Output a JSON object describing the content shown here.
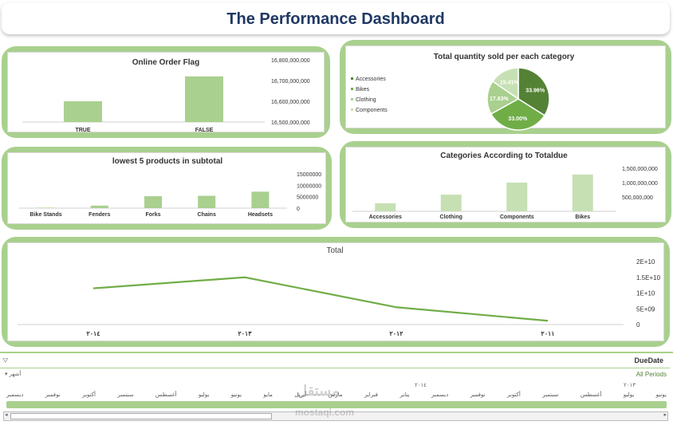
{
  "dashboard_title": "The Performance Dashboard",
  "colors": {
    "accent": "#a9d08e",
    "dark_green": "#548235",
    "mid_green": "#70ad47",
    "light_green": "#c6e0b4",
    "title": "#1f3864"
  },
  "chart_data": [
    {
      "id": "online",
      "type": "bar",
      "title": "Online Order Flag",
      "categories": [
        "TRUE",
        "FALSE"
      ],
      "values": [
        16600000000,
        16720000000
      ],
      "ylim": [
        16500000000,
        16800000000
      ],
      "yticks": [
        16500000000,
        16600000000,
        16700000000,
        16800000000
      ],
      "ytick_labels": [
        "16,500,000,000",
        "16,600,000,000",
        "16,700,000,000",
        "16,800,000,000"
      ]
    },
    {
      "id": "pie",
      "type": "pie",
      "title": "Total quantity sold per each category",
      "legend": [
        "Accessories",
        "Bikes",
        "Clothing",
        "Components"
      ],
      "values": [
        33.96,
        33.0,
        17.63,
        15.41
      ],
      "labels": [
        "33.96%",
        "33.00%",
        "17.63%",
        "15.41%"
      ],
      "colors": [
        "#548235",
        "#70ad47",
        "#a9d08e",
        "#c6e0b4"
      ]
    },
    {
      "id": "lowest",
      "type": "bar",
      "title": "lowest 5 products in subtotal",
      "categories": [
        "Bike Stands",
        "Fenders",
        "Forks",
        "Chains",
        "Headsets"
      ],
      "values": [
        200000,
        1100000,
        5200000,
        5400000,
        7200000
      ],
      "ylim": [
        0,
        15000000
      ],
      "yticks": [
        0,
        5000000,
        10000000,
        15000000
      ],
      "ytick_labels": [
        "0",
        "5000000",
        "10000000",
        "15000000"
      ]
    },
    {
      "id": "cats",
      "type": "bar",
      "title": "Categories According to Totaldue",
      "categories": [
        "Accessories",
        "Clothing",
        "Components",
        "Bikes"
      ],
      "values": [
        280000000,
        580000000,
        1000000000,
        1280000000
      ],
      "ylim": [
        0,
        1500000000
      ],
      "yticks": [
        500000000,
        1000000000,
        1500000000
      ],
      "ytick_labels": [
        "500,000,000",
        "1,000,000,000",
        "1,500,000,000"
      ]
    },
    {
      "id": "total",
      "type": "line",
      "title": "Total",
      "x": [
        "٢٠١٤",
        "٢٠١٣",
        "٢٠١٢",
        "٢٠١١"
      ],
      "values": [
        11500000000,
        15000000000,
        5500000000,
        1200000000
      ],
      "ylim": [
        0,
        20000000000
      ],
      "yticks": [
        0,
        5000000000,
        10000000000,
        15000000000,
        20000000000
      ],
      "ytick_labels": [
        "0",
        "5E+09",
        "1E+10",
        "1.5E+10",
        "2E+10"
      ]
    }
  ],
  "slicer": {
    "title": "DueDate",
    "level": "أشهر",
    "all_periods": "All Periods",
    "year_left": "٢٠١٤",
    "year_right": "٢٠١٣",
    "months": [
      "ديسمبر",
      "نوفمبر",
      "أكتوبر",
      "سبتمبر",
      "أغسطس",
      "يوليو",
      "يونيو",
      "مايو",
      "أبريل",
      "مارس",
      "فبراير",
      "يناير",
      "ديسمبر",
      "نوفمبر",
      "أكتوبر",
      "سبتمبر",
      "أغسطس",
      "يوليو",
      "يونيو"
    ],
    "funnel_icon": "filter-icon",
    "left_arrow": "◂",
    "right_arrow": "▸"
  },
  "watermark": {
    "main": "مستقل",
    "sub": "mostaql.com"
  }
}
